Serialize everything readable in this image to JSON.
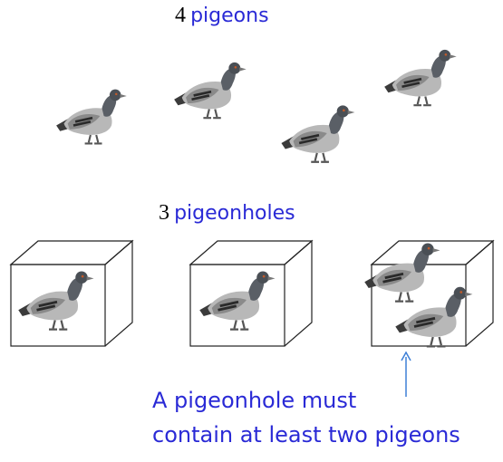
{
  "pigeons_heading": {
    "number": "4",
    "word": "pigeons"
  },
  "holes_heading": {
    "number": "3",
    "word": "pigeonholes"
  },
  "caption": {
    "line1": "A pigeonhole must",
    "line2": "contain at least two pigeons"
  },
  "colors": {
    "text_blue": "#2a2ad6",
    "arrow": "#3d7fd6",
    "box_line": "#222222"
  },
  "icons": {
    "pigeon": "pigeon-icon",
    "box": "pigeonhole-box",
    "arrow": "arrow-up-icon"
  }
}
